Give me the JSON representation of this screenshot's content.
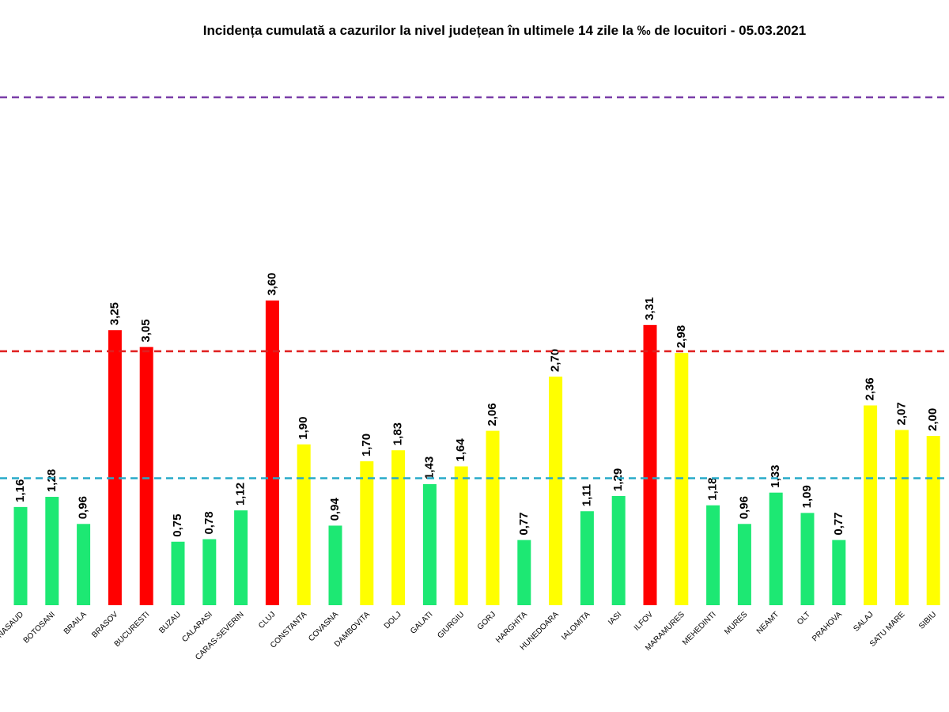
{
  "chart_data": {
    "type": "bar",
    "title": "Incidența cumulată a cazurilor la nivel județean în ultimele 14 zile la ‰ de locuitori - 05.03.2021",
    "categories": [
      "BISTRITA-NASAUD",
      "BOTOSANI",
      "BRAILA",
      "BRASOV",
      "BUCURESTI",
      "BUZAU",
      "CALARASI",
      "CARAS-SEVERIN",
      "CLUJ",
      "CONSTANTA",
      "COVASNA",
      "DAMBOVITA",
      "DOLJ",
      "GALATI",
      "GIURGIU",
      "GORJ",
      "HARGHITA",
      "HUNEDOARA",
      "IALOMITA",
      "IASI",
      "ILFOV",
      "MARAMURES",
      "MEHEDINTI",
      "MURES",
      "NEAMT",
      "OLT",
      "PRAHOVA",
      "SALAJ",
      "SATU MARE",
      "SIBIU"
    ],
    "values": [
      1.16,
      1.28,
      0.96,
      3.25,
      3.05,
      0.75,
      0.78,
      1.12,
      3.6,
      1.9,
      0.94,
      1.7,
      1.83,
      1.43,
      1.64,
      2.06,
      0.77,
      2.7,
      1.11,
      1.29,
      3.31,
      2.98,
      1.18,
      0.96,
      1.33,
      1.09,
      0.77,
      2.36,
      2.07,
      2.0
    ],
    "value_labels": [
      "1,16",
      "1,28",
      "0,96",
      "3,25",
      "3,05",
      "0,75",
      "0,78",
      "1,12",
      "3,60",
      "1,90",
      "0,94",
      "1,70",
      "1,83",
      "1,43",
      "1,64",
      "2,06",
      "0,77",
      "2,70",
      "1,11",
      "1,29",
      "3,31",
      "2,98",
      "1,18",
      "0,96",
      "1,33",
      "1,09",
      "0,77",
      "2,36",
      "2,07",
      "2,00"
    ],
    "colors": [
      "#1de873",
      "#1de873",
      "#1de873",
      "#ff0000",
      "#ff0000",
      "#1de873",
      "#1de873",
      "#1de873",
      "#ff0000",
      "#ffff00",
      "#1de873",
      "#ffff00",
      "#ffff00",
      "#1de873",
      "#ffff00",
      "#ffff00",
      "#1de873",
      "#ffff00",
      "#1de873",
      "#1de873",
      "#ff0000",
      "#ffff00",
      "#1de873",
      "#1de873",
      "#1de873",
      "#1de873",
      "#1de873",
      "#ffff00",
      "#ffff00",
      "#ffff00"
    ],
    "ylim": [
      0,
      7
    ],
    "thresholds": [
      {
        "value": 1.5,
        "color": "#27aac9"
      },
      {
        "value": 3,
        "color": "#e02020"
      },
      {
        "value": 6,
        "color": "#7a3ea8"
      }
    ]
  }
}
